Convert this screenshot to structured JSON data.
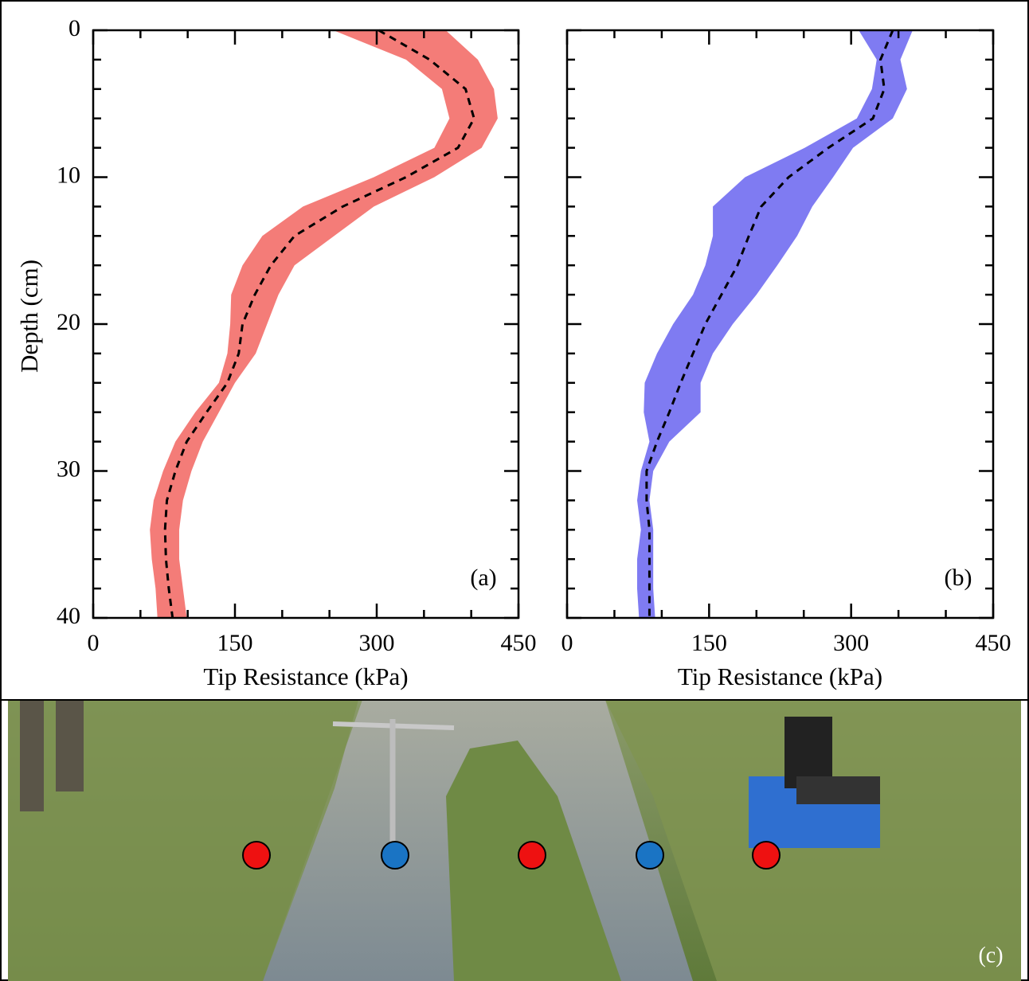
{
  "chart_data": [
    {
      "type": "line",
      "panel_label": "(a)",
      "ylabel": "Depth (cm)",
      "xlabel": "Tip Resistance (kPa)",
      "y": [
        0,
        2,
        4,
        6,
        8,
        10,
        12,
        14,
        16,
        18,
        20,
        22,
        24,
        26,
        28,
        30,
        32,
        34,
        36,
        38,
        40
      ],
      "values": [
        302,
        356,
        394,
        403,
        386,
        331,
        264,
        213,
        188,
        171,
        158,
        154,
        142,
        120,
        99,
        87,
        78,
        76,
        77,
        80,
        84
      ],
      "lower": [
        254,
        331,
        369,
        377,
        361,
        297,
        222,
        179,
        158,
        146,
        145,
        142,
        133,
        108,
        87,
        74,
        64,
        60,
        62,
        66,
        68
      ],
      "upper": [
        373,
        407,
        424,
        428,
        411,
        361,
        297,
        255,
        213,
        196,
        184,
        172,
        150,
        133,
        116,
        104,
        95,
        91,
        91,
        95,
        99
      ],
      "color": "#f47c78",
      "line_color": "#000000",
      "xlim": [
        0,
        450
      ],
      "xticks": [
        0,
        150,
        300,
        450
      ],
      "xminorticks": [
        50,
        100,
        200,
        250,
        350,
        400
      ],
      "ylim": [
        0,
        40
      ],
      "yticks": [
        0,
        10,
        20,
        30,
        40
      ],
      "yminorticks": [
        2,
        4,
        6,
        8,
        12,
        14,
        16,
        18,
        22,
        24,
        26,
        28,
        32,
        34,
        36,
        38
      ],
      "invert_y": true,
      "show_ytick_labels": true
    },
    {
      "type": "line",
      "panel_label": "(b)",
      "xlabel": "Tip Resistance (kPa)",
      "y": [
        0,
        2,
        4,
        6,
        8,
        10,
        12,
        14,
        16,
        18,
        20,
        22,
        24,
        26,
        28,
        30,
        32,
        34,
        36,
        38,
        40
      ],
      "values": [
        344,
        331,
        335,
        323,
        276,
        234,
        205,
        192,
        180,
        163,
        146,
        133,
        120,
        108,
        95,
        84,
        84,
        87,
        87,
        87,
        87
      ],
      "lower": [
        308,
        327,
        322,
        306,
        251,
        188,
        154,
        154,
        146,
        133,
        112,
        95,
        82,
        81,
        87,
        78,
        74,
        78,
        74,
        74,
        76
      ],
      "upper": [
        365,
        352,
        359,
        344,
        302,
        281,
        259,
        243,
        222,
        200,
        175,
        154,
        141,
        141,
        108,
        91,
        87,
        91,
        91,
        91,
        93
      ],
      "color": "#7f7bf2",
      "line_color": "#000000",
      "xlim": [
        0,
        450
      ],
      "xticks": [
        0,
        150,
        300,
        450
      ],
      "xminorticks": [
        50,
        100,
        200,
        250,
        350,
        400
      ],
      "ylim": [
        0,
        40
      ],
      "yticks": [
        0,
        10,
        20,
        30,
        40
      ],
      "yminorticks": [
        2,
        4,
        6,
        8,
        12,
        14,
        16,
        18,
        22,
        24,
        26,
        28,
        32,
        34,
        36,
        38
      ],
      "invert_y": true,
      "show_ytick_labels": false
    }
  ],
  "photo": {
    "label": "(c)"
  }
}
